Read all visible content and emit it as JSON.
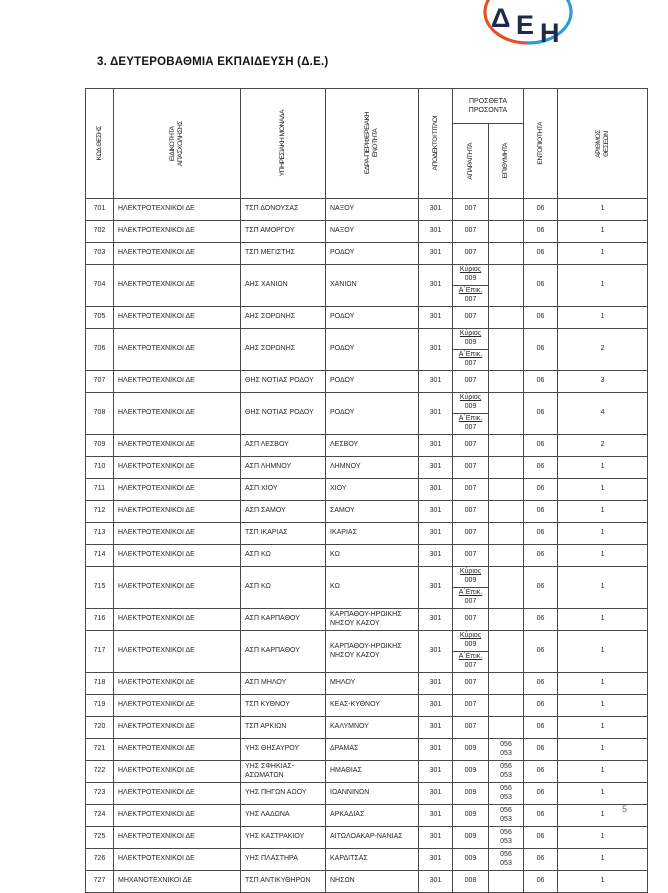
{
  "page": {
    "title": "3. ΔΕΥΤΕΡΟΒΑΘΜΙΑ ΕΚΠΑΙΔΕΥΣΗ (Δ.Ε.)",
    "page_number": "5"
  },
  "logo": {
    "letters": [
      "Δ",
      "Ε",
      "Η"
    ],
    "red": "#e0512e",
    "blue": "#2b9cd8",
    "text_color": "#20294c"
  },
  "table": {
    "headers": {
      "code": "ΚΩΔ ΘΕΣΗΣ",
      "specialty": "ΕΙΔΙΚΟΤΗΤΑ\nΑΠΑΣΧΟΛΗΣΗΣ",
      "unit": "ΥΠΗΡΕΣΙΑΚΗ ΜΟΝΑΔΑ",
      "region": "ΕΔΡΑ-ΠΕΡΙΦΕΡΕΙΑΚΗ\nΕΝΟΤΗΤΑ",
      "titles": "ΑΠΟΔΕΚΤΟΙ ΤΙΤΛΟΙ",
      "extra_group": "ΠΡΟΣΘΕΤΑ\nΠΡΟΣΟΝΤΑ",
      "required": "ΑΠΑΡΑΙΤΗΤΑ",
      "desired": "ΕΠΙΘΥΜΗΤΑ",
      "locality": "ΕΝΤΟΠΙΟΤΗΤΑ",
      "positions": "ΑΡΙΘΜΟΣ\nΘΕΣΕΩΝ"
    },
    "rows": [
      {
        "code": "701",
        "specialty": "ΗΛΕΚΤΡΟΤΕΧΝΙΚΟΙ ΔΕ",
        "unit": "ΤΣΠ ΔΟΝΟΥΣΑΣ",
        "region": "ΝΑΞΟΥ",
        "titles": "301",
        "required": "007",
        "desired": "",
        "locality": "06",
        "positions": "1"
      },
      {
        "code": "702",
        "specialty": "ΗΛΕΚΤΡΟΤΕΧΝΙΚΟΙ ΔΕ",
        "unit": "ΤΣΠ ΑΜΟΡΓΟΥ",
        "region": "ΝΑΞΟΥ",
        "titles": "301",
        "required": "007",
        "desired": "",
        "locality": "06",
        "positions": "1"
      },
      {
        "code": "703",
        "specialty": "ΗΛΕΚΤΡΟΤΕΧΝΙΚΟΙ ΔΕ",
        "unit": "ΤΣΠ ΜΕΓΙΣΤΗΣ",
        "region": "ΡΟΔΟΥ",
        "titles": "301",
        "required": "007",
        "desired": "",
        "locality": "06",
        "positions": "1"
      },
      {
        "code": "704",
        "specialty": "ΗΛΕΚΤΡΟΤΕΧΝΙΚΟΙ ΔΕ",
        "unit": "ΑΗΣ ΧΑΝΙΩΝ",
        "region": "ΧΑΝΙΩΝ",
        "titles": "301",
        "required": {
          "main_label": "Κύριος",
          "main_value": "009",
          "alt_label": "Α΄Επικ.",
          "alt_value": "007"
        },
        "desired": "",
        "locality": "06",
        "positions": "1"
      },
      {
        "code": "705",
        "specialty": "ΗΛΕΚΤΡΟΤΕΧΝΙΚΟΙ ΔΕ",
        "unit": "ΑΗΣ ΣΟΡΩΝΗΣ",
        "region": "ΡΟΔΟΥ",
        "titles": "301",
        "required": "007",
        "desired": "",
        "locality": "06",
        "positions": "1"
      },
      {
        "code": "706",
        "specialty": "ΗΛΕΚΤΡΟΤΕΧΝΙΚΟΙ ΔΕ",
        "unit": "ΑΗΣ ΣΟΡΩΝΗΣ",
        "region": "ΡΟΔΟΥ",
        "titles": "301",
        "required": {
          "main_label": "Κύριος",
          "main_value": "009",
          "alt_label": "Α΄Επικ.",
          "alt_value": "007"
        },
        "desired": "",
        "locality": "06",
        "positions": "2"
      },
      {
        "code": "707",
        "specialty": "ΗΛΕΚΤΡΟΤΕΧΝΙΚΟΙ ΔΕ",
        "unit": "ΘΗΣ ΝΟΤΙΑΣ ΡΟΔΟΥ",
        "region": "ΡΟΔΟΥ",
        "titles": "301",
        "required": "007",
        "desired": "",
        "locality": "06",
        "positions": "3"
      },
      {
        "code": "708",
        "specialty": "ΗΛΕΚΤΡΟΤΕΧΝΙΚΟΙ ΔΕ",
        "unit": "ΘΗΣ ΝΟΤΙΑΣ ΡΟΔΟΥ",
        "region": "ΡΟΔΟΥ",
        "titles": "301",
        "required": {
          "main_label": "Κύριος",
          "main_value": "009",
          "alt_label": "Α΄Επικ.",
          "alt_value": "007"
        },
        "desired": "",
        "locality": "06",
        "positions": "4"
      },
      {
        "code": "709",
        "specialty": "ΗΛΕΚΤΡΟΤΕΧΝΙΚΟΙ ΔΕ",
        "unit": "ΑΣΠ ΛΕΣΒΟΥ",
        "region": "ΛΕΣΒΟΥ",
        "titles": "301",
        "required": "007",
        "desired": "",
        "locality": "06",
        "positions": "2"
      },
      {
        "code": "710",
        "specialty": "ΗΛΕΚΤΡΟΤΕΧΝΙΚΟΙ ΔΕ",
        "unit": "ΑΣΠ ΛΗΜΝΟΥ",
        "region": "ΛΗΜΝΟΥ",
        "titles": "301",
        "required": "007",
        "desired": "",
        "locality": "06",
        "positions": "1"
      },
      {
        "code": "711",
        "specialty": "ΗΛΕΚΤΡΟΤΕΧΝΙΚΟΙ ΔΕ",
        "unit": "ΑΣΠ ΧΙΟΥ",
        "region": "ΧΙΟΥ",
        "titles": "301",
        "required": "007",
        "desired": "",
        "locality": "06",
        "positions": "1"
      },
      {
        "code": "712",
        "specialty": "ΗΛΕΚΤΡΟΤΕΧΝΙΚΟΙ ΔΕ",
        "unit": "ΑΣΠ ΣΑΜΟΥ",
        "region": "ΣΑΜΟΥ",
        "titles": "301",
        "required": "007",
        "desired": "",
        "locality": "06",
        "positions": "1"
      },
      {
        "code": "713",
        "specialty": "ΗΛΕΚΤΡΟΤΕΧΝΙΚΟΙ ΔΕ",
        "unit": "ΤΣΠ ΙΚΑΡΙΑΣ",
        "region": "ΙΚΑΡΙΑΣ",
        "titles": "301",
        "required": "007",
        "desired": "",
        "locality": "06",
        "positions": "1"
      },
      {
        "code": "714",
        "specialty": "ΗΛΕΚΤΡΟΤΕΧΝΙΚΟΙ ΔΕ",
        "unit": "ΑΣΠ ΚΩ",
        "region": "ΚΩ",
        "titles": "301",
        "required": "007",
        "desired": "",
        "locality": "06",
        "positions": "1"
      },
      {
        "code": "715",
        "specialty": "ΗΛΕΚΤΡΟΤΕΧΝΙΚΟΙ ΔΕ",
        "unit": "ΑΣΠ ΚΩ",
        "region": "ΚΩ",
        "titles": "301",
        "required": {
          "main_label": "Κύριος",
          "main_value": "009",
          "alt_label": "Α΄Επικ.",
          "alt_value": "007"
        },
        "desired": "",
        "locality": "06",
        "positions": "1"
      },
      {
        "code": "716",
        "specialty": "ΗΛΕΚΤΡΟΤΕΧΝΙΚΟΙ ΔΕ",
        "unit": "ΑΣΠ ΚΑΡΠΑΘΟΥ",
        "region": "ΚΑΡΠΑΘΟΥ-ΗΡΩΙΚΗΣ ΝΗΣΟΥ ΚΑΣΟΥ",
        "titles": "301",
        "required": "007",
        "desired": "",
        "locality": "06",
        "positions": "1"
      },
      {
        "code": "717",
        "specialty": "ΗΛΕΚΤΡΟΤΕΧΝΙΚΟΙ ΔΕ",
        "unit": "ΑΣΠ ΚΑΡΠΑΘΟΥ",
        "region": "ΚΑΡΠΑΘΟΥ-ΗΡΩΙΚΗΣ ΝΗΣΟΥ ΚΑΣΟΥ",
        "titles": "301",
        "required": {
          "main_label": "Κύριος",
          "main_value": "009",
          "alt_label": "Α΄Επικ.",
          "alt_value": "007"
        },
        "desired": "",
        "locality": "06",
        "positions": "1"
      },
      {
        "code": "718",
        "specialty": "ΗΛΕΚΤΡΟΤΕΧΝΙΚΟΙ ΔΕ",
        "unit": "ΑΣΠ ΜΗΛΟΥ",
        "region": "ΜΗΛΟΥ",
        "titles": "301",
        "required": "007",
        "desired": "",
        "locality": "06",
        "positions": "1"
      },
      {
        "code": "719",
        "specialty": "ΗΛΕΚΤΡΟΤΕΧΝΙΚΟΙ ΔΕ",
        "unit": "ΤΣΠ ΚΥΘΝΟΥ",
        "region": "ΚΕΑΣ-ΚΥΘΝΟΥ",
        "titles": "301",
        "required": "007",
        "desired": "",
        "locality": "06",
        "positions": "1"
      },
      {
        "code": "720",
        "specialty": "ΗΛΕΚΤΡΟΤΕΧΝΙΚΟΙ ΔΕ",
        "unit": "ΤΣΠ ΑΡΚΙΩΝ",
        "region": "ΚΑΛΥΜΝΟΥ",
        "titles": "301",
        "required": "007",
        "desired": "",
        "locality": "06",
        "positions": "1"
      },
      {
        "code": "721",
        "specialty": "ΗΛΕΚΤΡΟΤΕΧΝΙΚΟΙ ΔΕ",
        "unit": "ΥΗΣ ΘΗΣΑΥΡΟΥ",
        "region": "ΔΡΑΜΑΣ",
        "titles": "301",
        "required": "009",
        "desired": [
          "056",
          "053"
        ],
        "locality": "06",
        "positions": "1"
      },
      {
        "code": "722",
        "specialty": "ΗΛΕΚΤΡΟΤΕΧΝΙΚΟΙ ΔΕ",
        "unit": "ΥΗΣ ΣΦΗΚΙΑΣ-ΑΣΩΜΑΤΩΝ",
        "region": "ΗΜΑΘΙΑΣ",
        "titles": "301",
        "required": "009",
        "desired": [
          "056",
          "053"
        ],
        "locality": "06",
        "positions": "1"
      },
      {
        "code": "723",
        "specialty": "ΗΛΕΚΤΡΟΤΕΧΝΙΚΟΙ ΔΕ",
        "unit": "ΥΗΣ ΠΗΓΩΝ ΑΩΟΥ",
        "region": "ΙΩΑΝΝΙΝΩΝ",
        "titles": "301",
        "required": "009",
        "desired": [
          "056",
          "053"
        ],
        "locality": "06",
        "positions": "1"
      },
      {
        "code": "724",
        "specialty": "ΗΛΕΚΤΡΟΤΕΧΝΙΚΟΙ ΔΕ",
        "unit": "ΥΗΣ ΛΑΔΩΝΑ",
        "region": "ΑΡΚΑΔΙΑΣ",
        "titles": "301",
        "required": "009",
        "desired": [
          "056",
          "053"
        ],
        "locality": "06",
        "positions": "1"
      },
      {
        "code": "725",
        "specialty": "ΗΛΕΚΤΡΟΤΕΧΝΙΚΟΙ ΔΕ",
        "unit": "ΥΗΣ ΚΑΣΤΡΑΚΙΟΥ",
        "region": "ΑΙΤΩΛΟΑΚΑΡ-ΝΑΝΙΑΣ",
        "titles": "301",
        "required": "009",
        "desired": [
          "056",
          "053"
        ],
        "locality": "06",
        "positions": "1"
      },
      {
        "code": "726",
        "specialty": "ΗΛΕΚΤΡΟΤΕΧΝΙΚΟΙ ΔΕ",
        "unit": "ΥΗΣ ΠΛΑΣΤΗΡΑ",
        "region": "ΚΑΡΔΙΤΣΑΣ",
        "titles": "301",
        "required": "009",
        "desired": [
          "056",
          "053"
        ],
        "locality": "06",
        "positions": "1"
      },
      {
        "code": "727",
        "specialty": "ΜΗΧΑΝΟΤΕΧΝΙΚΟΙ ΔΕ",
        "unit": "ΤΣΠ ΑΝΤΙΚΥΘΗΡΩΝ",
        "region": "ΝΗΣΩΝ",
        "titles": "301",
        "required": "008",
        "desired": "",
        "locality": "06",
        "positions": "1"
      }
    ]
  }
}
